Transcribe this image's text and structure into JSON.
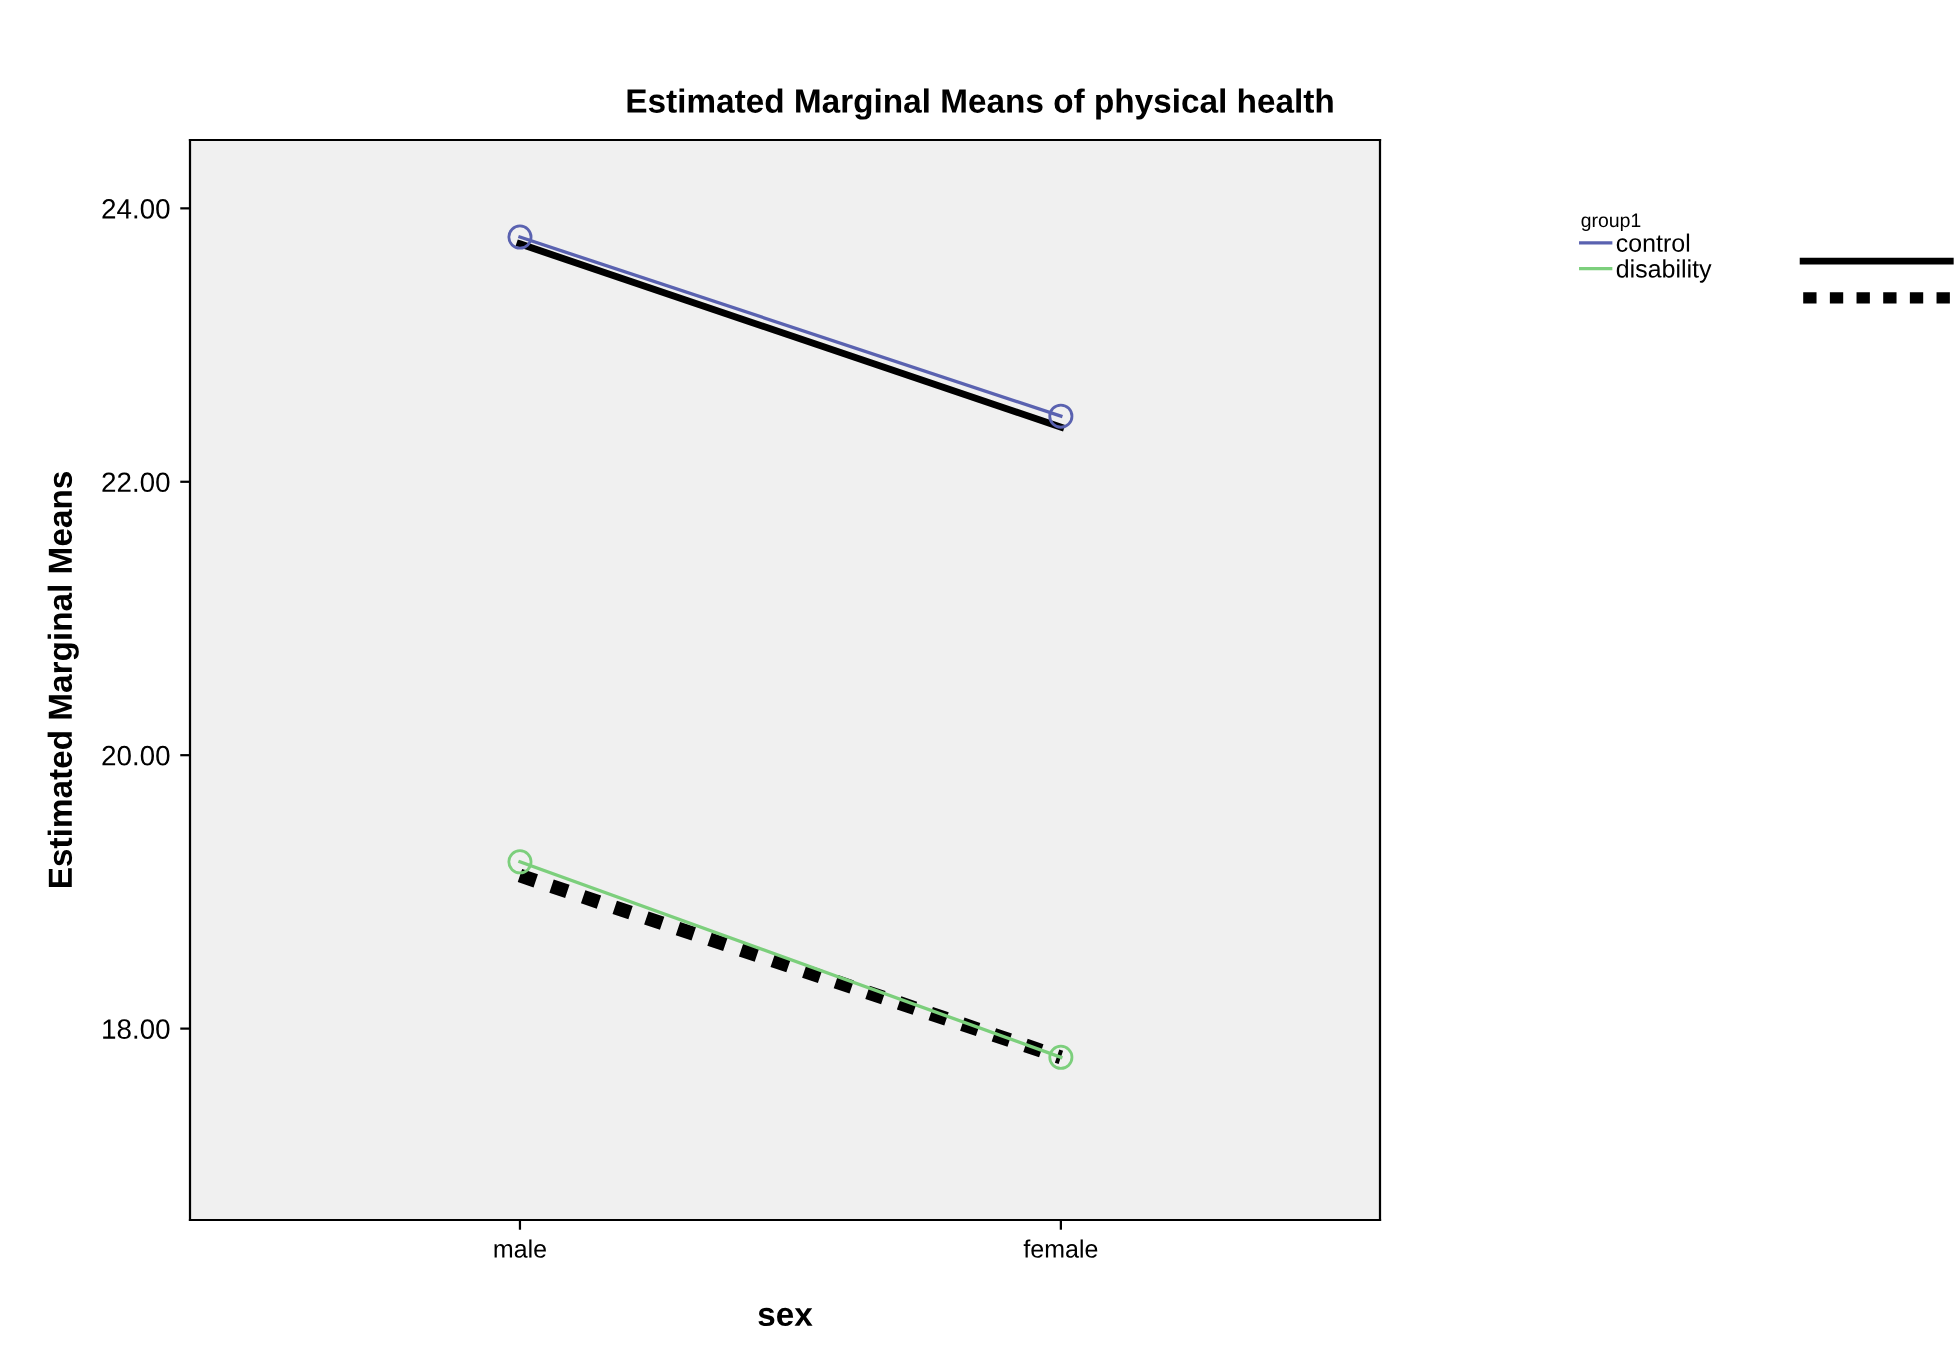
{
  "chart_data": {
    "type": "line",
    "title": "Estimated Marginal Means of physical health",
    "xlabel": "sex",
    "ylabel": "Estimated Marginal Means",
    "legend_title": "group1",
    "categories": [
      "male",
      "female"
    ],
    "series": [
      {
        "name": "control",
        "color": "#5a62b0",
        "values": [
          23.79,
          22.48
        ],
        "marker": "circle",
        "line_style": "solid"
      },
      {
        "name": "disability",
        "color": "#7ccf7c",
        "values": [
          19.22,
          17.79
        ],
        "marker": "circle",
        "line_style": "solid"
      },
      {
        "color": "#000000",
        "values": [
          23.74,
          22.4
        ],
        "marker": "none",
        "line_style": "solid"
      },
      {
        "color": "#000000",
        "values": [
          19.12,
          17.79
        ],
        "marker": "none",
        "line_style": "dotted"
      }
    ],
    "ylim": [
      16.6,
      24.5
    ],
    "yticks": [
      {
        "value": 18,
        "label": "18.00"
      },
      {
        "value": 20,
        "label": "20.00"
      },
      {
        "value": 22,
        "label": "22.00"
      },
      {
        "value": 24,
        "label": "24.00"
      }
    ],
    "grid": false,
    "legend": "top right"
  }
}
